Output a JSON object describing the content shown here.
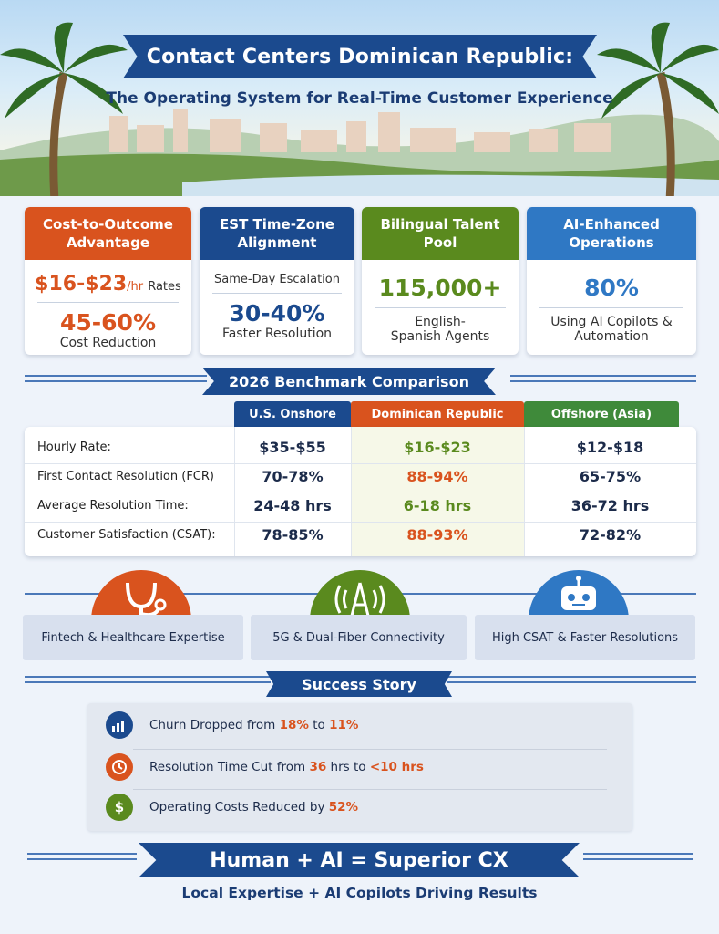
{
  "header": {
    "title": "Contact Centers Dominican Republic:",
    "subtitle": "The Operating System for Real-Time Customer Experience"
  },
  "cards": [
    {
      "title": "Cost-to-Outcome Advantage",
      "line1": "$16-$23",
      "line1_unit": "/hr",
      "line1_suffix": "Rates",
      "big": "45-60%",
      "caption": "Cost Reduction",
      "color": "#d9531e"
    },
    {
      "title": "EST Time-Zone Alignment",
      "line1": "Same-Day Escalation",
      "big": "30-40%",
      "caption": "Faster Resolution",
      "color": "#1b4a8e"
    },
    {
      "title": "Bilingual Talent Pool",
      "big": "115,000+",
      "caption": "English-Spanish Agents",
      "color": "#5a8a1e"
    },
    {
      "title": "AI-Enhanced Operations",
      "big": "80%",
      "caption": "Using AI Copilots & Automation",
      "color": "#2f78c4"
    }
  ],
  "benchmark": {
    "title": "2026 Benchmark Comparison",
    "columns": [
      "U.S. Onshore",
      "Dominican Republic",
      "Offshore (Asia)"
    ],
    "column_colors": [
      "#1b4a8e",
      "#d9531e",
      "#3f8a3a"
    ],
    "rows": [
      {
        "label": "Hourly Rate:",
        "us": "$35-$55",
        "dr": "$16-$23",
        "asia": "$12-$18",
        "dr_color": "#5a8a1e"
      },
      {
        "label": "First Contact Resolution (FCR)",
        "us": "70-78%",
        "dr": "88-94%",
        "asia": "65-75%",
        "dr_color": "#d9531e"
      },
      {
        "label": "Average Resolution Time:",
        "us": "24-48 hrs",
        "dr": "6-18 hrs",
        "asia": "36-72 hrs",
        "dr_color": "#5a8a1e"
      },
      {
        "label": "Customer Satisfaction (CSAT):",
        "us": "78-85%",
        "dr": "88-93%",
        "asia": "72-82%",
        "dr_color": "#d9531e"
      }
    ]
  },
  "features": [
    {
      "label": "Fintech & Healthcare Expertise",
      "icon": "stethoscope-icon",
      "color": "#d9531e"
    },
    {
      "label": "5G & Dual-Fiber Connectivity",
      "icon": "antenna-icon",
      "color": "#5a8a1e"
    },
    {
      "label": "High CSAT & Faster Resolutions",
      "icon": "robot-icon",
      "color": "#2f78c4"
    }
  ],
  "success": {
    "title": "Success Story",
    "items": [
      {
        "pre": "Churn Dropped from ",
        "a": "18%",
        "mid": " to ",
        "b": "11%",
        "post": "",
        "icon": "bar-chart-icon",
        "icon_color": "#1b4a8e"
      },
      {
        "pre": "Resolution Time Cut from ",
        "a": "36",
        "mid": " hrs to ",
        "b": "<10 hrs",
        "post": "",
        "icon": "clock-icon",
        "icon_color": "#d9531e"
      },
      {
        "pre": "Operating Costs Reduced by ",
        "a": "52%",
        "mid": "",
        "b": "",
        "post": "",
        "icon": "dollar-icon",
        "icon_color": "#5a8a1e"
      }
    ]
  },
  "footer": {
    "title": "Human + AI = Superior CX",
    "subtitle": "Local Expertise + AI Copilots Driving Results"
  }
}
